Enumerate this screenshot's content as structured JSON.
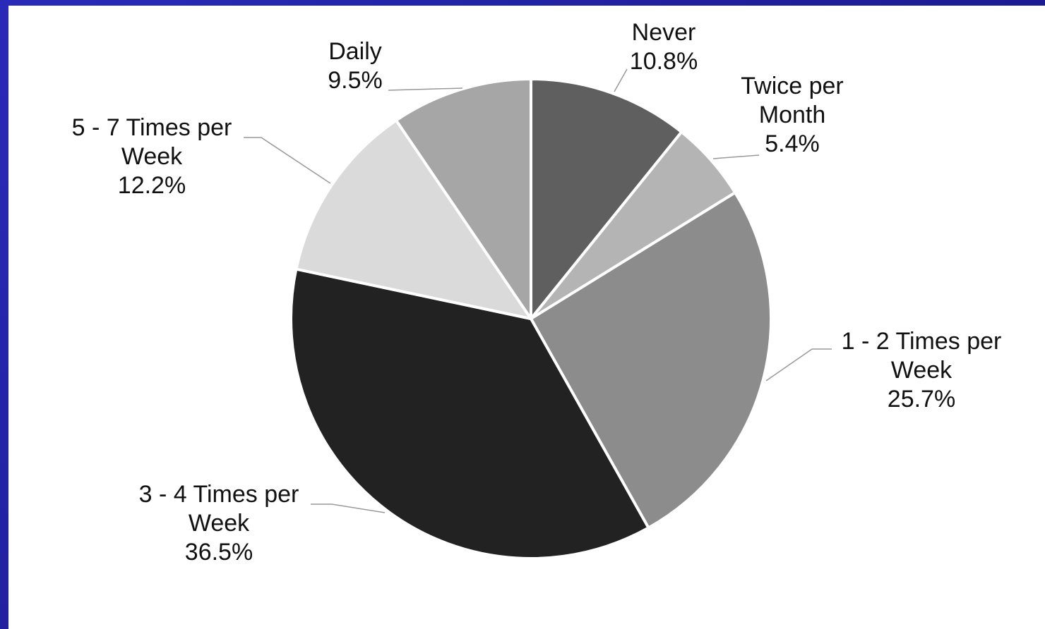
{
  "chart_data": {
    "type": "pie",
    "categories": [
      "Never",
      "Twice per Month",
      "1 - 2 Times per Week",
      "3 - 4 Times per Week",
      "5 - 7 Times per Week",
      "Daily"
    ],
    "values": [
      10.8,
      5.4,
      25.7,
      36.5,
      12.2,
      9.5
    ],
    "value_labels": [
      "10.8%",
      "5.4%",
      "25.7%",
      "36.5%",
      "12.2%",
      "9.5%"
    ],
    "colors": [
      "#5f5f5f",
      "#b4b4b4",
      "#8c8c8c",
      "#222222",
      "#dadada",
      "#a6a6a6"
    ]
  }
}
